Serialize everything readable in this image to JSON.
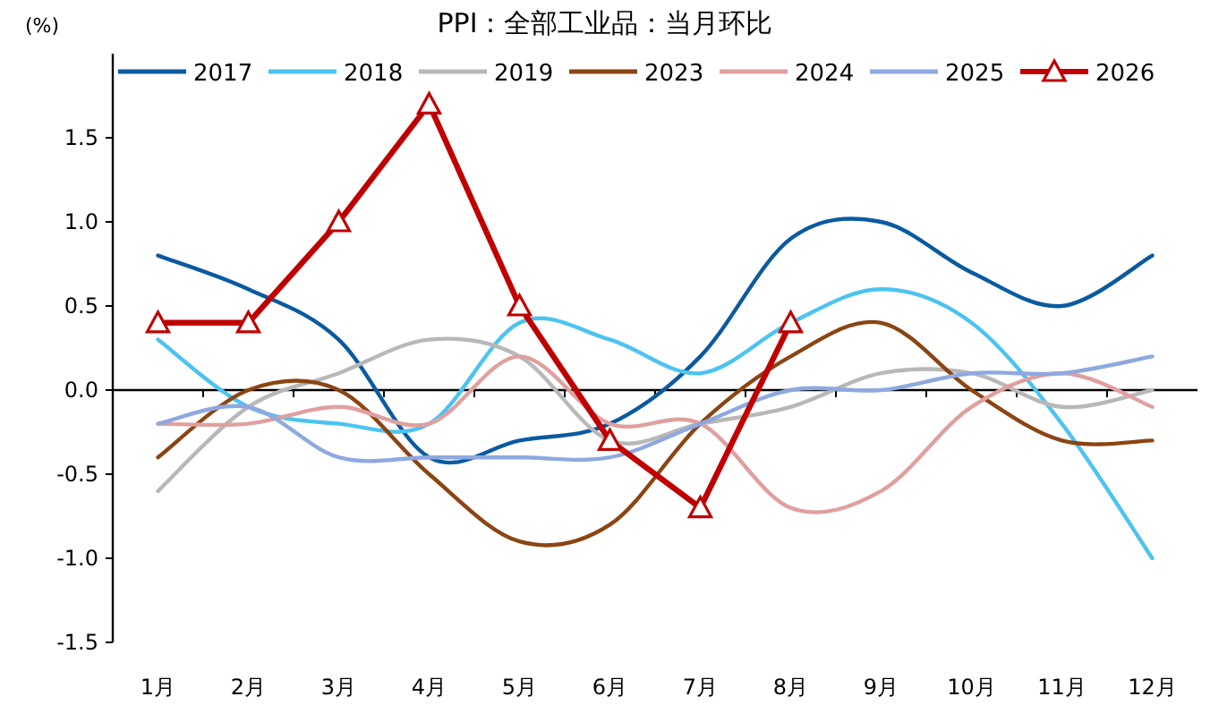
{
  "chart_data": {
    "type": "line",
    "title": "PPI：全部工业品：当月环比",
    "ylabel": "(%)",
    "categories": [
      "1月",
      "2月",
      "3月",
      "4月",
      "5月",
      "6月",
      "7月",
      "8月",
      "9月",
      "10月",
      "11月",
      "12月"
    ],
    "ylim": [
      -1.5,
      2.0
    ],
    "yticks": [
      {
        "value": -1.5,
        "label": "-1.5"
      },
      {
        "value": -1,
        "label": "-1.0"
      },
      {
        "value": -0.5,
        "label": "-0.5"
      },
      {
        "value": 0,
        "label": "0.0"
      },
      {
        "value": 0.5,
        "label": "0.5"
      },
      {
        "value": 1,
        "label": "1.0"
      },
      {
        "value": 1.5,
        "label": "1.5"
      }
    ],
    "legend": "top",
    "series": [
      {
        "name": "2017",
        "color": "#0a5aa0",
        "values": [
          0.8,
          0.6,
          0.3,
          -0.4,
          -0.3,
          -0.2,
          0.2,
          0.9,
          1.0,
          0.7,
          0.5,
          0.8
        ]
      },
      {
        "name": "2018",
        "color": "#4cc3f0",
        "values": [
          0.3,
          -0.1,
          -0.2,
          -0.2,
          0.4,
          0.3,
          0.1,
          0.4,
          0.6,
          0.4,
          -0.2,
          -1.0
        ]
      },
      {
        "name": "2019",
        "color": "#b8b8b8",
        "values": [
          -0.6,
          -0.1,
          0.1,
          0.3,
          0.2,
          -0.3,
          -0.2,
          -0.1,
          0.1,
          0.1,
          -0.1,
          0.0
        ]
      },
      {
        "name": "2023",
        "color": "#8b4513",
        "values": [
          -0.4,
          0.0,
          0.0,
          -0.5,
          -0.9,
          -0.8,
          -0.2,
          0.2,
          0.4,
          0.0,
          -0.3,
          -0.3
        ]
      },
      {
        "name": "2024",
        "color": "#e0a0a0",
        "values": [
          -0.2,
          -0.2,
          -0.1,
          -0.2,
          0.2,
          -0.2,
          -0.2,
          -0.7,
          -0.6,
          -0.1,
          0.1,
          -0.1
        ]
      },
      {
        "name": "2025",
        "color": "#8fa8e0",
        "values": [
          -0.2,
          -0.1,
          -0.4,
          -0.4,
          -0.4,
          -0.4,
          -0.2,
          0.0,
          0.0,
          0.1,
          0.1,
          0.2
        ]
      },
      {
        "name": "2026",
        "color": "#c00000",
        "marker": "triangle",
        "values": [
          0.4,
          0.4,
          1.0,
          1.7,
          0.5,
          -0.3,
          -0.7,
          0.4,
          null,
          null,
          null,
          null
        ]
      }
    ]
  }
}
